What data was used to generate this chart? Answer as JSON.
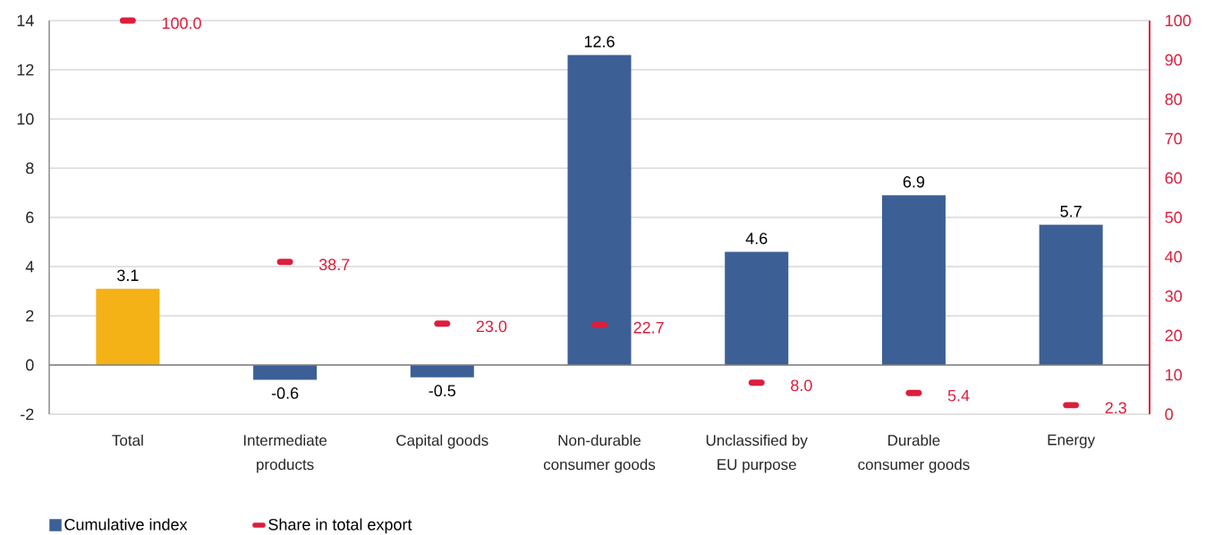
{
  "chart_data": {
    "type": "bar",
    "categories": [
      "Total",
      "Intermediate products",
      "Capital goods",
      "Non-durable consumer goods",
      "Unclassified by EU purpose",
      "Durable consumer goods",
      "Energy"
    ],
    "series": [
      {
        "name": "Cumulative index",
        "color": "#3c5f96",
        "colors": [
          "#f4b216",
          "#3c5f96",
          "#3c5f96",
          "#3c5f96",
          "#3c5f96",
          "#3c5f96",
          "#3c5f96"
        ],
        "values": [
          3.1,
          -0.6,
          -0.5,
          12.6,
          4.6,
          6.9,
          5.7
        ],
        "value_labels": [
          "3.1",
          "-0.6",
          "-0.5",
          "12.6",
          "4.6",
          "6.9",
          "5.7"
        ]
      },
      {
        "name": "Share in total export",
        "type": "scatter",
        "axis": "y2",
        "color": "#dc1e3c",
        "values": [
          100.0,
          38.7,
          23.0,
          22.7,
          8.0,
          5.4,
          2.3
        ],
        "value_labels": [
          "100.0",
          "38.7",
          "23.0",
          "22.7",
          "8.0",
          "5.4",
          "2.3"
        ]
      }
    ],
    "ylim": [
      -2,
      14
    ],
    "yticks": [
      -2,
      0,
      2,
      4,
      6,
      8,
      10,
      12,
      14
    ],
    "y2lim": [
      0,
      100
    ],
    "y2ticks": [
      0,
      10,
      20,
      30,
      40,
      50,
      60,
      70,
      80,
      90,
      100
    ],
    "grid": "y",
    "legend": "bottom"
  }
}
